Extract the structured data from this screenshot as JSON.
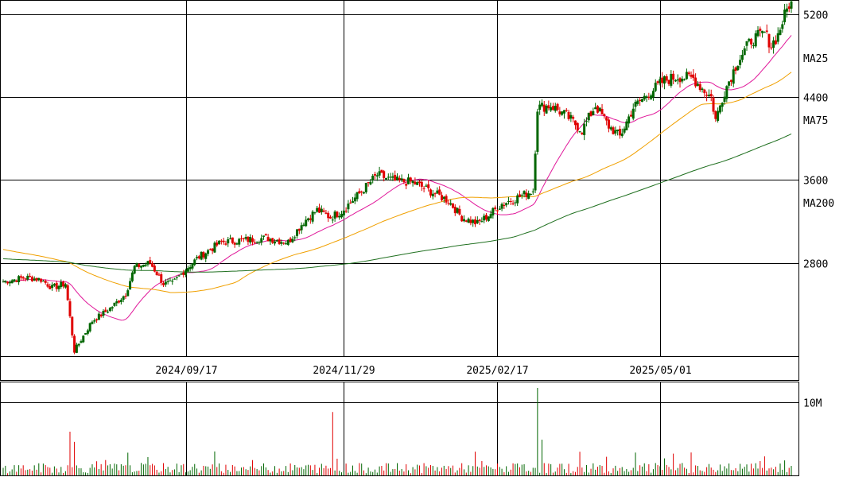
{
  "chart_data": [
    {
      "type": "candlestick",
      "price_axis": {
        "ticks": [
          2800,
          3600,
          4400,
          5200
        ],
        "range": [
          1900,
          5330
        ]
      },
      "date_ticks": [
        "2024/09/17",
        "2024/11/29",
        "2025/02/17",
        "2025/05/01"
      ],
      "legend": [
        {
          "label": "MA25",
          "color": "#e0189a"
        },
        {
          "label": "MA75",
          "color": "#f0a000"
        },
        {
          "label": "MA200",
          "color": "#207020"
        }
      ],
      "up_color": "#006600",
      "down_color": "#e00000",
      "anchors": [
        {
          "i": 0,
          "close": 2620
        },
        {
          "i": 10,
          "close": 2660
        },
        {
          "i": 17,
          "close": 2640
        },
        {
          "i": 22,
          "close": 2560
        },
        {
          "i": 28,
          "close": 2600
        },
        {
          "i": 32,
          "close": 1950
        },
        {
          "i": 40,
          "close": 2240
        },
        {
          "i": 48,
          "close": 2360
        },
        {
          "i": 55,
          "close": 2500
        },
        {
          "i": 59,
          "close": 2760
        },
        {
          "i": 66,
          "close": 2800
        },
        {
          "i": 72,
          "close": 2600
        },
        {
          "i": 76,
          "close": 2600
        },
        {
          "i": 82,
          "close": 2740
        },
        {
          "i": 88,
          "close": 2860
        },
        {
          "i": 98,
          "close": 3000
        },
        {
          "i": 108,
          "close": 3020
        },
        {
          "i": 118,
          "close": 3040
        },
        {
          "i": 128,
          "close": 3000
        },
        {
          "i": 135,
          "close": 3200
        },
        {
          "i": 141,
          "close": 3310
        },
        {
          "i": 147,
          "close": 3240
        },
        {
          "i": 152,
          "close": 3300
        },
        {
          "i": 160,
          "close": 3470
        },
        {
          "i": 168,
          "close": 3650
        },
        {
          "i": 176,
          "close": 3590
        },
        {
          "i": 184,
          "close": 3580
        },
        {
          "i": 192,
          "close": 3490
        },
        {
          "i": 200,
          "close": 3400
        },
        {
          "i": 206,
          "close": 3240
        },
        {
          "i": 213,
          "close": 3180
        },
        {
          "i": 218,
          "close": 3260
        },
        {
          "i": 224,
          "close": 3370
        },
        {
          "i": 232,
          "close": 3440
        },
        {
          "i": 238,
          "close": 3500
        },
        {
          "i": 240,
          "close": 4300
        },
        {
          "i": 246,
          "close": 4320
        },
        {
          "i": 253,
          "close": 4220
        },
        {
          "i": 260,
          "close": 4080
        },
        {
          "i": 266,
          "close": 4320
        },
        {
          "i": 272,
          "close": 4120
        },
        {
          "i": 277,
          "close": 4020
        },
        {
          "i": 283,
          "close": 4300
        },
        {
          "i": 290,
          "close": 4440
        },
        {
          "i": 297,
          "close": 4560
        },
        {
          "i": 303,
          "close": 4600
        },
        {
          "i": 310,
          "close": 4580
        },
        {
          "i": 315,
          "close": 4460
        },
        {
          "i": 318,
          "close": 4400
        },
        {
          "i": 320,
          "close": 4180
        },
        {
          "i": 324,
          "close": 4460
        },
        {
          "i": 330,
          "close": 4750
        },
        {
          "i": 336,
          "close": 4950
        },
        {
          "i": 342,
          "close": 5020
        },
        {
          "i": 345,
          "close": 4900
        },
        {
          "i": 348,
          "close": 5000
        },
        {
          "i": 350,
          "close": 5130
        },
        {
          "i": 353,
          "close": 5300
        }
      ],
      "volume_axis": {
        "ticks": [
          {
            "label": "10M",
            "value": 10000000
          }
        ],
        "max": 12000000
      },
      "volume_spikes": [
        {
          "i": 30,
          "volume": 6000000
        },
        {
          "i": 32,
          "volume": 4600000
        },
        {
          "i": 148,
          "volume": 8700000
        },
        {
          "i": 240,
          "volume": 12000000
        },
        {
          "i": 242,
          "volume": 4900000
        }
      ]
    }
  ]
}
